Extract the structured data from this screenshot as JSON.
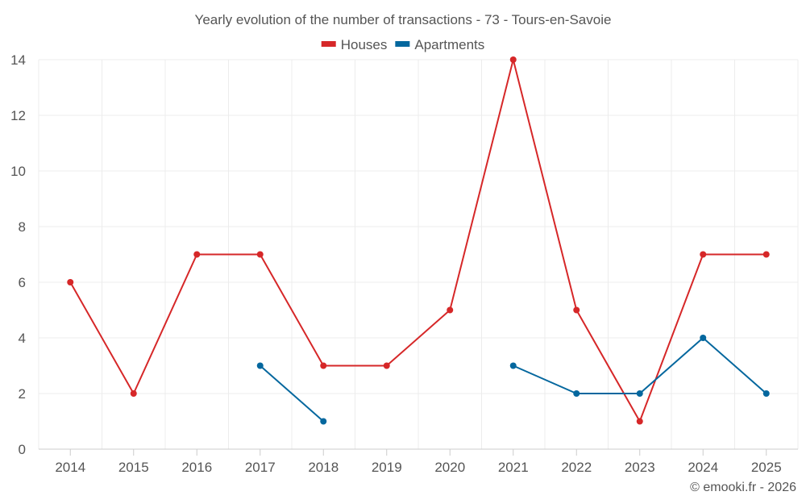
{
  "chart_data": {
    "type": "line",
    "title": "Yearly evolution of the number of transactions - 73 - Tours-en-Savoie",
    "categories": [
      "2014",
      "2015",
      "2016",
      "2017",
      "2018",
      "2019",
      "2020",
      "2021",
      "2022",
      "2023",
      "2024",
      "2025"
    ],
    "ylim": [
      0,
      14
    ],
    "yticks": [
      0,
      2,
      4,
      6,
      8,
      10,
      12,
      14
    ],
    "grid": true,
    "legend_position": "top-center",
    "series": [
      {
        "name": "Houses",
        "color": "#d62728",
        "values": [
          6,
          2,
          7,
          7,
          3,
          3,
          5,
          14,
          5,
          1,
          7,
          7
        ]
      },
      {
        "name": "Apartments",
        "color": "#04679e",
        "values": [
          null,
          null,
          null,
          3,
          1,
          null,
          null,
          3,
          2,
          2,
          4,
          2
        ]
      }
    ],
    "xlabel": "",
    "ylabel": ""
  },
  "credit": "© emooki.fr - 2026"
}
